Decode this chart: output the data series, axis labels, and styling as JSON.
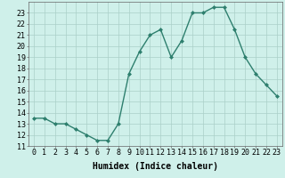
{
  "x": [
    0,
    1,
    2,
    3,
    4,
    5,
    6,
    7,
    8,
    9,
    10,
    11,
    12,
    13,
    14,
    15,
    16,
    17,
    18,
    19,
    20,
    21,
    22,
    23
  ],
  "y": [
    13.5,
    13.5,
    13,
    13,
    12.5,
    12,
    11.5,
    11.5,
    13,
    17.5,
    19.5,
    21,
    21.5,
    19,
    20.5,
    23,
    23,
    23.5,
    23.5,
    21.5,
    19,
    17.5,
    16.5,
    15.5
  ],
  "line_color": "#2e7f6e",
  "marker": "D",
  "marker_size": 2,
  "bg_color": "#cff0ea",
  "grid_color": "#aacfc8",
  "xlabel": "Humidex (Indice chaleur)",
  "xlim": [
    -0.5,
    23.5
  ],
  "ylim": [
    11,
    24
  ],
  "yticks": [
    11,
    12,
    13,
    14,
    15,
    16,
    17,
    18,
    19,
    20,
    21,
    22,
    23
  ],
  "xticks": [
    0,
    1,
    2,
    3,
    4,
    5,
    6,
    7,
    8,
    9,
    10,
    11,
    12,
    13,
    14,
    15,
    16,
    17,
    18,
    19,
    20,
    21,
    22,
    23
  ],
  "xtick_labels": [
    "0",
    "1",
    "2",
    "3",
    "4",
    "5",
    "6",
    "7",
    "8",
    "9",
    "10",
    "11",
    "12",
    "13",
    "14",
    "15",
    "16",
    "17",
    "18",
    "19",
    "20",
    "21",
    "22",
    "23"
  ],
  "xlabel_fontsize": 7,
  "tick_fontsize": 6,
  "line_width": 1.0
}
